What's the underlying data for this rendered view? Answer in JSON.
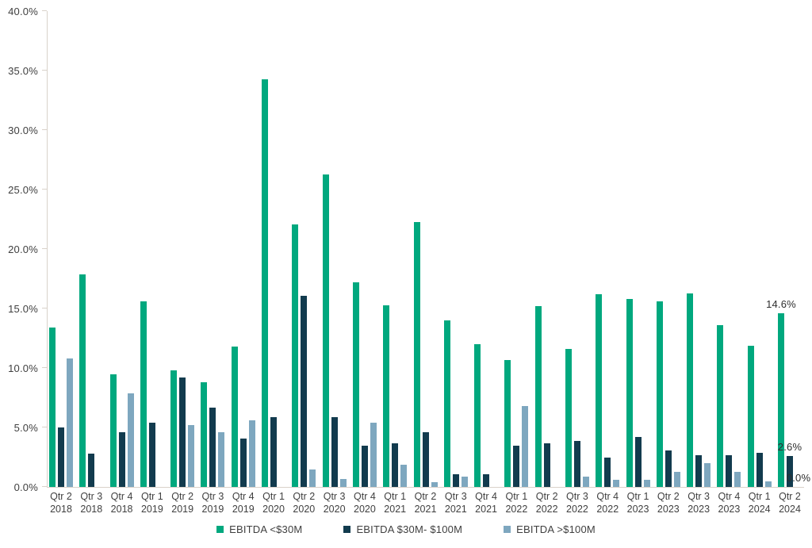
{
  "chart_data": {
    "type": "bar",
    "categories": [
      "Qtr 2 2018",
      "Qtr 3 2018",
      "Qtr 4 2018",
      "Qtr 1 2019",
      "Qtr 2 2019",
      "Qtr 3 2019",
      "Qtr 4 2019",
      "Qtr 1 2020",
      "Qtr 2 2020",
      "Qtr 3 2020",
      "Qtr 4 2020",
      "Qtr 1 2021",
      "Qtr 2 2021",
      "Qtr 3 2021",
      "Qtr 4 2021",
      "Qtr 1 2022",
      "Qtr 2 2022",
      "Qtr 3 2022",
      "Qtr 4 2022",
      "Qtr 1 2023",
      "Qtr 2 2023",
      "Qtr 3 2023",
      "Qtr 4 2023",
      "Qtr 1 2024",
      "Qtr 2 2024"
    ],
    "category_labels": [
      {
        "line1": "Qtr 2",
        "line2": "2018"
      },
      {
        "line1": "Qtr 3",
        "line2": "2018"
      },
      {
        "line1": "Qtr 4",
        "line2": "2018"
      },
      {
        "line1": "Qtr 1",
        "line2": "2019"
      },
      {
        "line1": "Qtr 2",
        "line2": "2019"
      },
      {
        "line1": "Qtr 3",
        "line2": "2019"
      },
      {
        "line1": "Qtr 4",
        "line2": "2019"
      },
      {
        "line1": "Qtr 1",
        "line2": "2020"
      },
      {
        "line1": "Qtr 2",
        "line2": "2020"
      },
      {
        "line1": "Qtr 3",
        "line2": "2020"
      },
      {
        "line1": "Qtr 4",
        "line2": "2020"
      },
      {
        "line1": "Qtr 1",
        "line2": "2021"
      },
      {
        "line1": "Qtr 2",
        "line2": "2021"
      },
      {
        "line1": "Qtr 3",
        "line2": "2021"
      },
      {
        "line1": "Qtr 4",
        "line2": "2021"
      },
      {
        "line1": "Qtr 1",
        "line2": "2022"
      },
      {
        "line1": "Qtr 2",
        "line2": "2022"
      },
      {
        "line1": "Qtr 3",
        "line2": "2022"
      },
      {
        "line1": "Qtr 4",
        "line2": "2022"
      },
      {
        "line1": "Qtr 1",
        "line2": "2023"
      },
      {
        "line1": "Qtr 2",
        "line2": "2023"
      },
      {
        "line1": "Qtr 3",
        "line2": "2023"
      },
      {
        "line1": "Qtr 4",
        "line2": "2023"
      },
      {
        "line1": "Qtr 1",
        "line2": "2024"
      },
      {
        "line1": "Qtr 2",
        "line2": "2024"
      }
    ],
    "series": [
      {
        "name": "EBITDA <$30M",
        "color": "#00a87e",
        "values": [
          13.4,
          17.9,
          9.5,
          15.6,
          9.8,
          8.8,
          11.8,
          34.3,
          22.1,
          26.3,
          17.2,
          15.3,
          22.3,
          14.0,
          12.0,
          10.7,
          15.2,
          11.6,
          16.2,
          15.8,
          15.6,
          16.3,
          13.6,
          11.9,
          14.6
        ]
      },
      {
        "name": "EBITDA $30M- $100M",
        "color": "#123b4e",
        "values": [
          5.0,
          2.8,
          4.6,
          5.4,
          9.2,
          6.7,
          4.1,
          5.9,
          16.1,
          5.9,
          3.5,
          3.7,
          4.6,
          1.1,
          1.1,
          3.5,
          3.7,
          3.9,
          2.5,
          4.2,
          3.1,
          2.7,
          2.7,
          2.9,
          2.6
        ]
      },
      {
        "name": "EBITDA >$100M",
        "color": "#7ea7bf",
        "values": [
          10.8,
          0,
          7.9,
          0,
          5.2,
          4.6,
          5.6,
          0,
          1.5,
          0.7,
          5.4,
          1.9,
          0.4,
          0.9,
          0,
          6.8,
          0,
          0.9,
          0.6,
          0.6,
          1.3,
          2.0,
          1.3,
          0.5,
          0
        ]
      }
    ],
    "ylim": [
      0,
      40
    ],
    "ytick_step": 5,
    "ytick_labels": [
      "0.0%",
      "5.0%",
      "10.0%",
      "15.0%",
      "20.0%",
      "25.0%",
      "30.0%",
      "35.0%",
      "40.0%"
    ],
    "grid": false,
    "legend_position": "bottom",
    "point_labels": [
      {
        "category_index": 24,
        "series_index": 0,
        "text": "14.6%"
      },
      {
        "category_index": 24,
        "series_index": 1,
        "text": "2.6%"
      },
      {
        "category_index": 24,
        "series_index": 2,
        "text": "0.0%"
      }
    ]
  }
}
